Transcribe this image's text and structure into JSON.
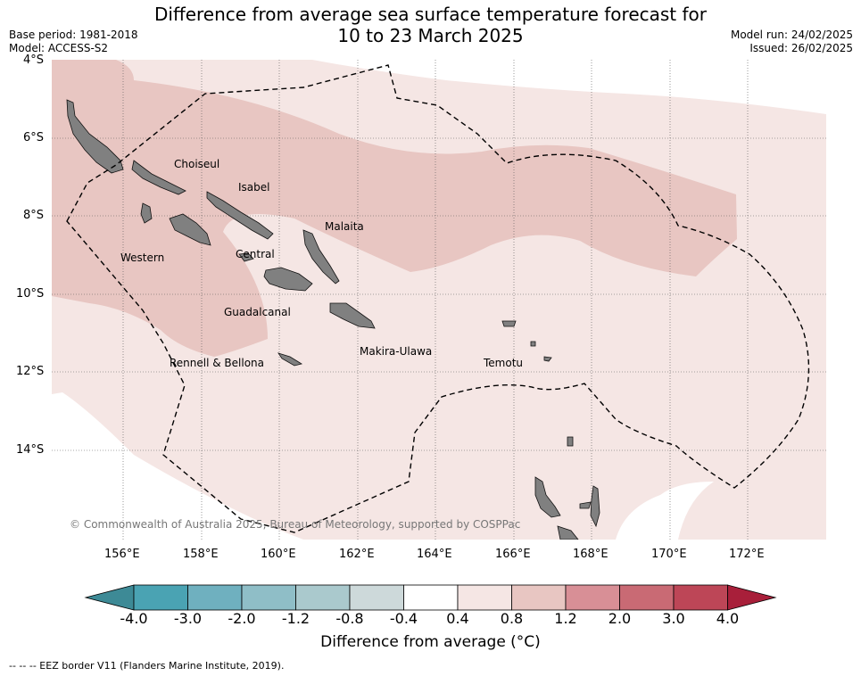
{
  "title": {
    "line1": "Difference from average sea surface temperature forecast for",
    "line2": "10 to 23 March 2025"
  },
  "meta_left": {
    "base_period": "Base period: 1981-2018",
    "model": "Model: ACCESS-S2"
  },
  "meta_right": {
    "model_run": "Model run: 24/02/2025",
    "issued": "Issued: 26/02/2025"
  },
  "map": {
    "lat_ticks": [
      "4°S",
      "6°S",
      "8°S",
      "10°S",
      "12°S",
      "14°S"
    ],
    "lon_ticks": [
      "156°E",
      "158°E",
      "160°E",
      "162°E",
      "164°E",
      "166°E",
      "168°E",
      "170°E",
      "172°E"
    ],
    "provinces": [
      "Choiseul",
      "Isabel",
      "Malaita",
      "Western",
      "Central",
      "Guadalcanal",
      "Makira-Ulawa",
      "Rennell & Bellona",
      "Temotu"
    ],
    "copyright": "© Commonwealth of Australia 2025, Bureau of Meteorology, supported by COSPPac",
    "colors": {
      "anomaly_0_4_0_8": "#f5e6e4",
      "anomaly_0_8_1_2": "#e8c6c2",
      "land": "#808080"
    }
  },
  "colorbar": {
    "ticks": [
      "-4.0",
      "-3.0",
      "-2.0",
      "-1.2",
      "-0.8",
      "-0.4",
      "0.4",
      "0.8",
      "1.2",
      "2.0",
      "3.0",
      "4.0"
    ],
    "colors": [
      "#3d8a96",
      "#4aa3b3",
      "#6fb0bf",
      "#8fbec7",
      "#aac9cd",
      "#cdd9da",
      "#ffffff",
      "#f5e6e4",
      "#e8c6c2",
      "#d88f96",
      "#c96a74",
      "#bd4657",
      "#a81f3a"
    ],
    "label": "Difference from average (°C)"
  },
  "footnote": "-- -- -- EEZ border V11 (Flanders Marine Institute, 2019)."
}
